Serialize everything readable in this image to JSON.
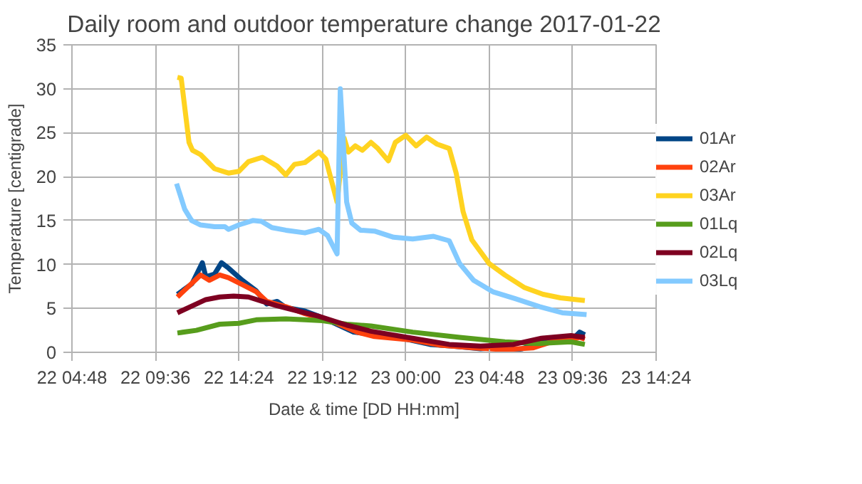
{
  "chart_data": {
    "type": "line",
    "title": "Daily room and outdoor temperature change 2017-01-22",
    "xlabel": "Date & time [DD HH:mm]",
    "ylabel": "Temperature [centigrade]",
    "xlim": [
      "2017-01-22T04:48",
      "2017-01-23T14:24"
    ],
    "xticks": [
      {
        "value": "2017-01-22T04:48",
        "label": "22 04:48"
      },
      {
        "value": "2017-01-22T09:36",
        "label": "22 09:36"
      },
      {
        "value": "2017-01-22T14:24",
        "label": "22 14:24"
      },
      {
        "value": "2017-01-22T19:12",
        "label": "22 19:12"
      },
      {
        "value": "2017-01-23T00:00",
        "label": "23 00:00"
      },
      {
        "value": "2017-01-23T04:48",
        "label": "23 04:48"
      },
      {
        "value": "2017-01-23T09:36",
        "label": "23 09:36"
      },
      {
        "value": "2017-01-23T14:24",
        "label": "23 14:24"
      }
    ],
    "ylim": [
      0,
      35
    ],
    "yticks": [
      0,
      5,
      10,
      15,
      20,
      25,
      30,
      35
    ],
    "grid": true,
    "legend": "right",
    "marker": "none",
    "line_style": "solid",
    "series": [
      {
        "name": "01Ar",
        "color": "#004586",
        "x": [
          "2017-01-22T10:52",
          "2017-01-22T11:42",
          "2017-01-22T12:18",
          "2017-01-22T12:30",
          "2017-01-22T13:00",
          "2017-01-22T13:24",
          "2017-01-22T13:48",
          "2017-01-22T14:36",
          "2017-01-22T15:24",
          "2017-01-22T16:00",
          "2017-01-22T16:36",
          "2017-01-22T17:06",
          "2017-01-22T18:12",
          "2017-01-22T19:00",
          "2017-01-22T19:48",
          "2017-01-22T21:00",
          "2017-01-22T22:12",
          "2017-01-22T23:48",
          "2017-01-23T01:24",
          "2017-01-23T02:42",
          "2017-01-23T04:18",
          "2017-01-23T05:06",
          "2017-01-23T05:42",
          "2017-01-23T06:42",
          "2017-01-23T07:48",
          "2017-01-23T08:54",
          "2017-01-23T09:42",
          "2017-01-23T10:00",
          "2017-01-23T10:18"
        ],
        "values": [
          6.6,
          7.8,
          10.2,
          8.6,
          8.9,
          10.2,
          9.6,
          8.2,
          7.0,
          5.5,
          5.8,
          5.1,
          4.7,
          4.1,
          3.4,
          2.3,
          2.0,
          1.6,
          0.9,
          0.7,
          0.4,
          0.5,
          0.1,
          0.4,
          1.2,
          1.7,
          1.7,
          2.3,
          2.0
        ]
      },
      {
        "name": "02Ar",
        "color": "#ff420e",
        "x": [
          "2017-01-22T10:52",
          "2017-01-22T12:12",
          "2017-01-22T12:42",
          "2017-01-22T13:18",
          "2017-01-22T13:48",
          "2017-01-22T14:36",
          "2017-01-22T15:24",
          "2017-01-22T16:00",
          "2017-01-22T17:06",
          "2017-01-22T18:12",
          "2017-01-22T19:48",
          "2017-01-22T21:12",
          "2017-01-22T22:12",
          "2017-01-23T00:24",
          "2017-01-23T02:00",
          "2017-01-23T03:54",
          "2017-01-23T05:42",
          "2017-01-23T07:18",
          "2017-01-23T08:24",
          "2017-01-23T09:30",
          "2017-01-23T10:00",
          "2017-01-23T10:18"
        ],
        "values": [
          6.3,
          8.8,
          8.2,
          8.8,
          8.5,
          7.7,
          6.9,
          5.8,
          5.2,
          4.4,
          3.5,
          2.3,
          1.8,
          1.4,
          0.8,
          0.5,
          0.3,
          0.5,
          1.2,
          1.4,
          1.7,
          1.5
        ]
      },
      {
        "name": "03Ar",
        "color": "#ffd320",
        "x": [
          "2017-01-22T10:52",
          "2017-01-22T11:05",
          "2017-01-22T11:32",
          "2017-01-22T11:44",
          "2017-01-22T12:12",
          "2017-01-22T13:00",
          "2017-01-22T13:48",
          "2017-01-22T14:24",
          "2017-01-22T14:57",
          "2017-01-22T15:45",
          "2017-01-22T16:36",
          "2017-01-22T17:06",
          "2017-01-22T17:36",
          "2017-01-22T18:12",
          "2017-01-22T19:00",
          "2017-01-22T19:24",
          "2017-01-22T20:03",
          "2017-01-22T20:27",
          "2017-01-22T20:42",
          "2017-01-22T21:06",
          "2017-01-22T21:30",
          "2017-01-22T22:00",
          "2017-01-22T22:24",
          "2017-01-22T23:00",
          "2017-01-22T23:24",
          "2017-01-23T00:00",
          "2017-01-23T00:36",
          "2017-01-23T01:12",
          "2017-01-23T01:48",
          "2017-01-23T02:30",
          "2017-01-23T02:54",
          "2017-01-23T03:18",
          "2017-01-23T03:48",
          "2017-01-23T04:48",
          "2017-01-23T05:42",
          "2017-01-23T06:48",
          "2017-01-23T07:54",
          "2017-01-23T08:54",
          "2017-01-23T10:18"
        ],
        "values": [
          31.3,
          31.2,
          23.9,
          23.0,
          22.5,
          20.9,
          20.4,
          20.6,
          21.7,
          22.2,
          21.2,
          20.2,
          21.4,
          21.6,
          22.8,
          22.0,
          17.1,
          24.4,
          22.8,
          23.5,
          23.0,
          23.9,
          23.2,
          21.8,
          23.9,
          24.7,
          23.5,
          24.5,
          23.7,
          23.2,
          20.4,
          16.0,
          12.8,
          10.1,
          8.8,
          7.4,
          6.6,
          6.2,
          5.9
        ]
      },
      {
        "name": "01Lq",
        "color": "#579d1c",
        "x": [
          "2017-01-22T10:52",
          "2017-01-22T11:57",
          "2017-01-22T13:18",
          "2017-01-22T14:24",
          "2017-01-22T15:24",
          "2017-01-22T17:06",
          "2017-01-22T18:12",
          "2017-01-22T19:12",
          "2017-01-22T20:36",
          "2017-01-22T22:00",
          "2017-01-23T00:24",
          "2017-01-23T03:06",
          "2017-01-23T05:42",
          "2017-01-23T07:36",
          "2017-01-23T09:30",
          "2017-01-23T10:18"
        ],
        "values": [
          2.2,
          2.5,
          3.2,
          3.3,
          3.7,
          3.8,
          3.7,
          3.6,
          3.2,
          3.0,
          2.3,
          1.7,
          1.2,
          1.0,
          1.2,
          0.9
        ]
      },
      {
        "name": "02Lq",
        "color": "#7e0021",
        "x": [
          "2017-01-22T10:52",
          "2017-01-22T11:57",
          "2017-01-22T12:30",
          "2017-01-22T13:18",
          "2017-01-22T14:06",
          "2017-01-22T14:57",
          "2017-01-22T15:45",
          "2017-01-22T16:36",
          "2017-01-22T17:36",
          "2017-01-22T19:00",
          "2017-01-22T20:36",
          "2017-01-22T22:00",
          "2017-01-23T00:24",
          "2017-01-23T02:30",
          "2017-01-23T04:18",
          "2017-01-23T06:12",
          "2017-01-23T07:48",
          "2017-01-23T09:30",
          "2017-01-23T10:18"
        ],
        "values": [
          4.5,
          5.5,
          6.0,
          6.3,
          6.4,
          6.3,
          5.8,
          5.3,
          4.8,
          4.1,
          3.1,
          2.4,
          1.6,
          0.9,
          0.7,
          0.9,
          1.6,
          1.9,
          1.7
        ]
      },
      {
        "name": "03Lq",
        "color": "#83caff",
        "x": [
          "2017-01-22T10:49",
          "2017-01-22T11:17",
          "2017-01-22T11:41",
          "2017-01-22T12:12",
          "2017-01-22T13:00",
          "2017-01-22T13:36",
          "2017-01-22T13:48",
          "2017-01-22T14:24",
          "2017-01-22T15:12",
          "2017-01-22T15:42",
          "2017-01-22T16:18",
          "2017-01-22T17:06",
          "2017-01-22T18:12",
          "2017-01-22T19:00",
          "2017-01-22T19:30",
          "2017-01-22T20:03",
          "2017-01-22T20:14",
          "2017-01-22T20:36",
          "2017-01-22T20:54",
          "2017-01-22T21:24",
          "2017-01-22T22:12",
          "2017-01-22T23:18",
          "2017-01-23T00:24",
          "2017-01-23T01:36",
          "2017-01-23T02:30",
          "2017-01-23T03:06",
          "2017-01-23T03:54",
          "2017-01-23T05:00",
          "2017-01-23T06:18",
          "2017-01-23T07:42",
          "2017-01-23T09:00",
          "2017-01-23T10:24"
        ],
        "values": [
          19.2,
          16.3,
          15.0,
          14.5,
          14.3,
          14.3,
          14.0,
          14.5,
          15.0,
          14.9,
          14.2,
          13.9,
          13.6,
          14.0,
          13.3,
          11.2,
          30.0,
          17.1,
          14.7,
          13.9,
          13.8,
          13.1,
          12.9,
          13.2,
          12.7,
          10.1,
          8.2,
          6.9,
          6.1,
          5.2,
          4.5,
          4.3
        ]
      }
    ]
  }
}
